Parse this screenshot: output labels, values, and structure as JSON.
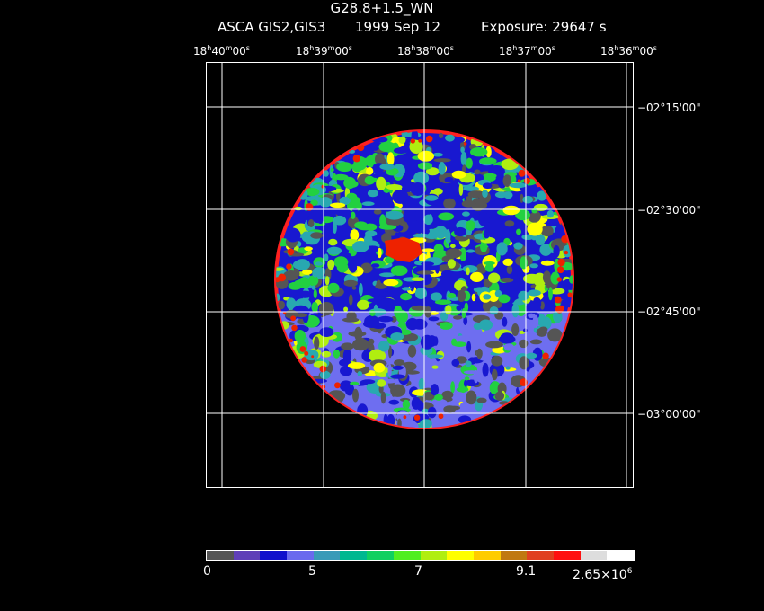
{
  "header": {
    "title": "G28.8+1.5_WN",
    "instrument": "ASCA GIS2,GIS3",
    "date": "1999 Sep 12",
    "exposure": "Exposure: 29647 s"
  },
  "ra_ticks": [
    {
      "h": "18",
      "m": "40",
      "s": "00"
    },
    {
      "h": "18",
      "m": "39",
      "s": "00"
    },
    {
      "h": "18",
      "m": "38",
      "s": "00"
    },
    {
      "h": "18",
      "m": "37",
      "s": "00"
    },
    {
      "h": "18",
      "m": "36",
      "s": "00"
    }
  ],
  "dec_ticks": [
    "−02°15'00\"",
    "−02°30'00\"",
    "−02°45'00\"",
    "−03°00'00\""
  ],
  "colorbar": {
    "colors": [
      "#555555",
      "#5f3fb8",
      "#1010cc",
      "#6a6aee",
      "#3a9ab8",
      "#00b890",
      "#10d060",
      "#50ee20",
      "#b0ee10",
      "#ffff00",
      "#ffcc00",
      "#c07810",
      "#e04020",
      "#ff1010",
      "#dddddd",
      "#ffffff"
    ],
    "labels": [
      "0",
      "5",
      "7",
      "9.1"
    ],
    "max_mantissa": "2.65×10",
    "max_exp": "6"
  },
  "image": {
    "palette": {
      "outer": "#ff2020",
      "grey": "#555555",
      "blue": "#1818d0",
      "lilac": "#6e6ef0",
      "cyan": "#28a8b0",
      "green": "#22d040",
      "lime": "#b0ee10",
      "yellow": "#ffff00",
      "red": "#ee2200",
      "grid": "#ffffff"
    }
  }
}
